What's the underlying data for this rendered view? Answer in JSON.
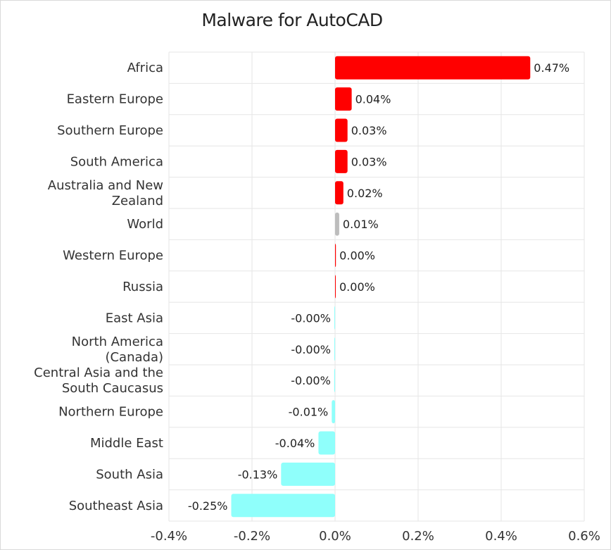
{
  "chart_data": {
    "type": "bar",
    "orientation": "horizontal",
    "title": "Malware for AutoCAD",
    "categories": [
      [
        "Africa"
      ],
      [
        "Eastern Europe"
      ],
      [
        "Southern Europe"
      ],
      [
        "South America"
      ],
      [
        "Australia and New",
        "Zealand"
      ],
      [
        "World"
      ],
      [
        "Western Europe"
      ],
      [
        "Russia"
      ],
      [
        "East Asia"
      ],
      [
        "North America",
        "(Canada)"
      ],
      [
        "Central Asia and the",
        "South Caucasus"
      ],
      [
        "Northern Europe"
      ],
      [
        "Middle East"
      ],
      [
        "South Asia"
      ],
      [
        "Southeast Asia"
      ]
    ],
    "values": [
      0.47,
      0.04,
      0.03,
      0.03,
      0.02,
      0.01,
      0.002,
      0.001,
      -0.0005,
      -0.001,
      -0.002,
      -0.008,
      -0.04,
      -0.13,
      -0.25
    ],
    "data_labels": [
      "0.47%",
      "0.04%",
      "0.03%",
      "0.03%",
      "0.02%",
      "0.01%",
      "0.00%",
      "0.00%",
      "-0.00%",
      "-0.00%",
      "-0.00%",
      "-0.01%",
      "-0.04%",
      "-0.13%",
      "-0.25%"
    ],
    "bar_colors": [
      "#ff0000",
      "#ff0000",
      "#ff0000",
      "#ff0000",
      "#ff0000",
      "#bdbdbd",
      "#ff0000",
      "#ff0000",
      "#8ffffb",
      "#8ffffb",
      "#8ffffb",
      "#8ffffb",
      "#8ffffb",
      "#8ffffb",
      "#8ffffb"
    ],
    "xlim": [
      -0.4,
      0.6
    ],
    "xticks": [
      -0.4,
      -0.2,
      0.0,
      0.2,
      0.4,
      0.6
    ],
    "xtick_labels": [
      "-0.4%",
      "-0.2%",
      "0.0%",
      "0.2%",
      "0.4%",
      "0.6%"
    ],
    "xlabel": "",
    "ylabel": "",
    "grid": true
  }
}
